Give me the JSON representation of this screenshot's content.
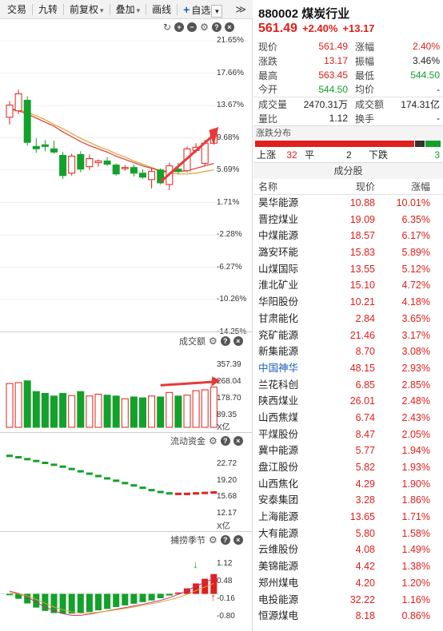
{
  "toolbar": {
    "items": [
      "交易",
      "九转",
      "前复权",
      "叠加",
      "画线"
    ],
    "add_favorite_label": "自选",
    "more_label": "≫"
  },
  "kline_panel": {
    "y_ticks": [
      "21.65%",
      "17.66%",
      "13.67%",
      "9.68%",
      "5.69%",
      "1.71%",
      "-2.28%",
      "-6.27%",
      "-10.26%",
      "-14.25%"
    ],
    "colors": {
      "up": "#e0201c",
      "down": "#12a12a",
      "ma_short": "#e03a2f",
      "ma_long": "#e0a030"
    },
    "candles": [
      {
        "o": 12.2,
        "h": 14.2,
        "l": 11.3,
        "c": 13.7
      },
      {
        "o": 13.0,
        "h": 15.6,
        "l": 12.6,
        "c": 15.1
      },
      {
        "o": 14.3,
        "h": 14.8,
        "l": 8.7,
        "c": 9.1
      },
      {
        "o": 8.6,
        "h": 9.6,
        "l": 7.8,
        "c": 8.3
      },
      {
        "o": 8.8,
        "h": 9.4,
        "l": 8.0,
        "c": 8.6
      },
      {
        "o": 8.3,
        "h": 9.3,
        "l": 7.7,
        "c": 7.9
      },
      {
        "o": 7.5,
        "h": 7.9,
        "l": 4.6,
        "c": 5.0
      },
      {
        "o": 5.3,
        "h": 7.7,
        "l": 5.0,
        "c": 7.4
      },
      {
        "o": 7.6,
        "h": 8.0,
        "l": 5.4,
        "c": 5.8
      },
      {
        "o": 6.1,
        "h": 7.6,
        "l": 5.7,
        "c": 7.1
      },
      {
        "o": 6.6,
        "h": 7.0,
        "l": 6.1,
        "c": 6.8
      },
      {
        "o": 6.8,
        "h": 7.3,
        "l": 6.2,
        "c": 6.4
      },
      {
        "o": 6.3,
        "h": 6.5,
        "l": 5.0,
        "c": 5.2
      },
      {
        "o": 5.9,
        "h": 6.3,
        "l": 5.6,
        "c": 6.0
      },
      {
        "o": 6.0,
        "h": 6.4,
        "l": 4.9,
        "c": 5.3
      },
      {
        "o": 5.3,
        "h": 5.8,
        "l": 4.6,
        "c": 4.8
      },
      {
        "o": 4.5,
        "h": 5.9,
        "l": 3.4,
        "c": 5.5
      },
      {
        "o": 5.7,
        "h": 5.9,
        "l": 3.9,
        "c": 4.1
      },
      {
        "o": 3.9,
        "h": 6.6,
        "l": 3.2,
        "c": 6.2
      },
      {
        "o": 5.8,
        "h": 6.6,
        "l": 5.2,
        "c": 5.5
      },
      {
        "o": 5.6,
        "h": 8.6,
        "l": 5.4,
        "c": 8.3
      },
      {
        "o": 8.1,
        "h": 9.0,
        "l": 7.8,
        "c": 8.5
      },
      {
        "o": 6.5,
        "h": 9.4,
        "l": 6.2,
        "c": 9.0
      },
      {
        "o": 9.0,
        "h": 10.8,
        "l": 8.9,
        "c": 10.6
      }
    ],
    "ma_short": [
      13.2,
      13.0,
      12.6,
      12.1,
      11.6,
      11.1,
      10.4,
      9.8,
      9.2,
      8.7,
      8.3,
      7.9,
      7.4,
      7.0,
      6.6,
      6.2,
      5.9,
      5.6,
      5.5,
      5.5,
      5.6,
      5.9,
      6.2,
      6.5
    ],
    "ma_long": [
      13.3,
      13.1,
      12.8,
      12.4,
      11.9,
      11.3,
      10.8,
      10.2,
      9.6,
      9.1,
      8.6,
      8.2,
      7.7,
      7.3,
      6.8,
      6.4,
      6.0,
      5.6,
      5.3,
      5.2,
      5.2,
      5.3,
      5.5,
      5.7
    ]
  },
  "volume_panel": {
    "label": "成交额",
    "y_ticks": [
      "357.39",
      "268.04",
      "178.70",
      "89.35"
    ],
    "unit": "X亿",
    "values": [
      245,
      250,
      260,
      200,
      190,
      175,
      190,
      178,
      200,
      175,
      185,
      180,
      175,
      160,
      170,
      165,
      175,
      170,
      195,
      175,
      180,
      205,
      210,
      225
    ]
  },
  "fund_panel": {
    "label": "流动资金",
    "y_ticks": [
      "22.72",
      "19.20",
      "15.68",
      "12.17"
    ],
    "unit": "X亿",
    "values": [
      24.3,
      24.0,
      23.6,
      23.2,
      22.8,
      22.4,
      22.0,
      21.5,
      21.0,
      20.5,
      20.0,
      19.5,
      19.0,
      18.5,
      18.0,
      17.5,
      17.0,
      16.6,
      16.3,
      16.2,
      16.2,
      16.3,
      16.4,
      16.5
    ]
  },
  "season_panel": {
    "label": "捕捞季节",
    "y_ticks": [
      "1.12",
      "0.48",
      "-0.16",
      "-0.80"
    ],
    "values": [
      -0.05,
      -0.18,
      -0.35,
      -0.5,
      -0.62,
      -0.7,
      -0.72,
      -0.72,
      -0.7,
      -0.66,
      -0.6,
      -0.55,
      -0.48,
      -0.42,
      -0.36,
      -0.3,
      -0.24,
      -0.16,
      -0.06,
      0.05,
      0.2,
      0.38,
      0.55,
      0.72
    ],
    "line_a": [
      0.1,
      0.02,
      -0.12,
      -0.3,
      -0.48,
      -0.62,
      -0.72,
      -0.78,
      -0.78,
      -0.74,
      -0.68,
      -0.62,
      -0.56,
      -0.5,
      -0.44,
      -0.38,
      -0.31,
      -0.24,
      -0.14,
      -0.02,
      0.12,
      0.28,
      0.42,
      0.55
    ],
    "line_b": [
      0.05,
      0.0,
      -0.08,
      -0.2,
      -0.34,
      -0.48,
      -0.58,
      -0.66,
      -0.7,
      -0.7,
      -0.67,
      -0.63,
      -0.58,
      -0.53,
      -0.48,
      -0.42,
      -0.36,
      -0.3,
      -0.22,
      -0.13,
      -0.02,
      0.12,
      0.25,
      0.38
    ]
  },
  "header": {
    "code": "880002",
    "name": "煤炭行业",
    "price": "561.49",
    "pct": "+2.40%",
    "chg": "+13.17"
  },
  "quote": {
    "rows": [
      {
        "l1": "现价",
        "v1": "561.49",
        "c1": "red",
        "l2": "涨幅",
        "v2": "2.40%",
        "c2": "red"
      },
      {
        "l1": "涨跌",
        "v1": "13.17",
        "c1": "red",
        "l2": "振幅",
        "v2": "3.46%",
        "c2": ""
      },
      {
        "l1": "最高",
        "v1": "563.45",
        "c1": "red",
        "l2": "最低",
        "v2": "544.50",
        "c2": "green"
      },
      {
        "l1": "今开",
        "v1": "544.50",
        "c1": "green",
        "l2": "均价",
        "v2": "-",
        "c2": ""
      },
      {
        "l1": "成交量",
        "v1": "2470.31万",
        "c1": "",
        "l2": "成交额",
        "v2": "174.31亿",
        "c2": ""
      },
      {
        "l1": "量比",
        "v1": "1.12",
        "c1": "",
        "l2": "换手",
        "v2": "-",
        "c2": ""
      }
    ]
  },
  "distribution": {
    "title": "涨跌分布",
    "up_label": "上涨",
    "up_count": "32",
    "flat_label": "平",
    "flat_count": "2",
    "down_label": "下跌",
    "down_count": "3",
    "up": 32,
    "flat": 2,
    "down": 3
  },
  "constituents": {
    "title": "成分股",
    "headers": [
      "名称",
      "现价",
      "涨幅"
    ],
    "rows": [
      {
        "name": "昊华能源",
        "price": "10.88",
        "chg": "10.01%"
      },
      {
        "name": "晋控煤业",
        "price": "19.09",
        "chg": "6.35%"
      },
      {
        "name": "中煤能源",
        "price": "18.57",
        "chg": "6.17%"
      },
      {
        "name": "潞安环能",
        "price": "15.83",
        "chg": "5.89%"
      },
      {
        "name": "山煤国际",
        "price": "13.55",
        "chg": "5.12%"
      },
      {
        "name": "淮北矿业",
        "price": "15.10",
        "chg": "4.72%"
      },
      {
        "name": "华阳股份",
        "price": "10.21",
        "chg": "4.18%"
      },
      {
        "name": "甘肃能化",
        "price": "2.84",
        "chg": "3.65%"
      },
      {
        "name": "兖矿能源",
        "price": "21.46",
        "chg": "3.17%"
      },
      {
        "name": "新集能源",
        "price": "8.70",
        "chg": "3.08%"
      },
      {
        "name": "中国神华",
        "price": "48.15",
        "chg": "2.93%",
        "highlight": true
      },
      {
        "name": "兰花科创",
        "price": "6.85",
        "chg": "2.85%"
      },
      {
        "name": "陕西煤业",
        "price": "26.01",
        "chg": "2.48%"
      },
      {
        "name": "山西焦煤",
        "price": "6.74",
        "chg": "2.43%"
      },
      {
        "name": "平煤股份",
        "price": "8.47",
        "chg": "2.05%"
      },
      {
        "name": "冀中能源",
        "price": "5.77",
        "chg": "1.94%"
      },
      {
        "name": "盘江股份",
        "price": "5.82",
        "chg": "1.93%"
      },
      {
        "name": "山西焦化",
        "price": "4.29",
        "chg": "1.90%"
      },
      {
        "name": "安泰集团",
        "price": "3.28",
        "chg": "1.86%"
      },
      {
        "name": "上海能源",
        "price": "13.65",
        "chg": "1.71%"
      },
      {
        "name": "大有能源",
        "price": "5.80",
        "chg": "1.58%"
      },
      {
        "name": "云维股份",
        "price": "4.08",
        "chg": "1.49%"
      },
      {
        "name": "美锦能源",
        "price": "4.42",
        "chg": "1.38%"
      },
      {
        "name": "郑州煤电",
        "price": "4.20",
        "chg": "1.20%"
      },
      {
        "name": "电投能源",
        "price": "32.22",
        "chg": "1.16%"
      },
      {
        "name": "恒源煤电",
        "price": "8.18",
        "chg": "0.86%"
      }
    ]
  }
}
